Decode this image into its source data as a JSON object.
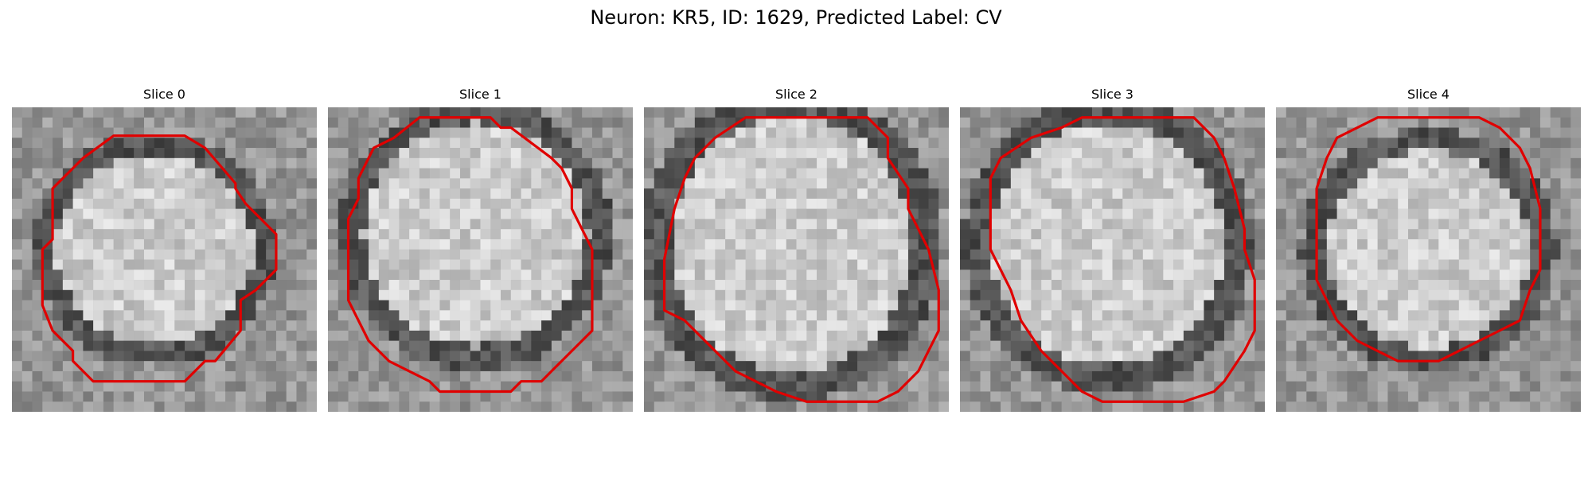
{
  "figure": {
    "title": "Neuron: KR5, ID: 1629, Predicted Label: CV"
  },
  "panels": [
    {
      "title": "Slice 0"
    },
    {
      "title": "Slice 1"
    },
    {
      "title": "Slice 2"
    },
    {
      "title": "Slice 3"
    },
    {
      "title": "Slice 4"
    }
  ],
  "colors": {
    "contour": "#e00000",
    "background": "#ffffff"
  }
}
